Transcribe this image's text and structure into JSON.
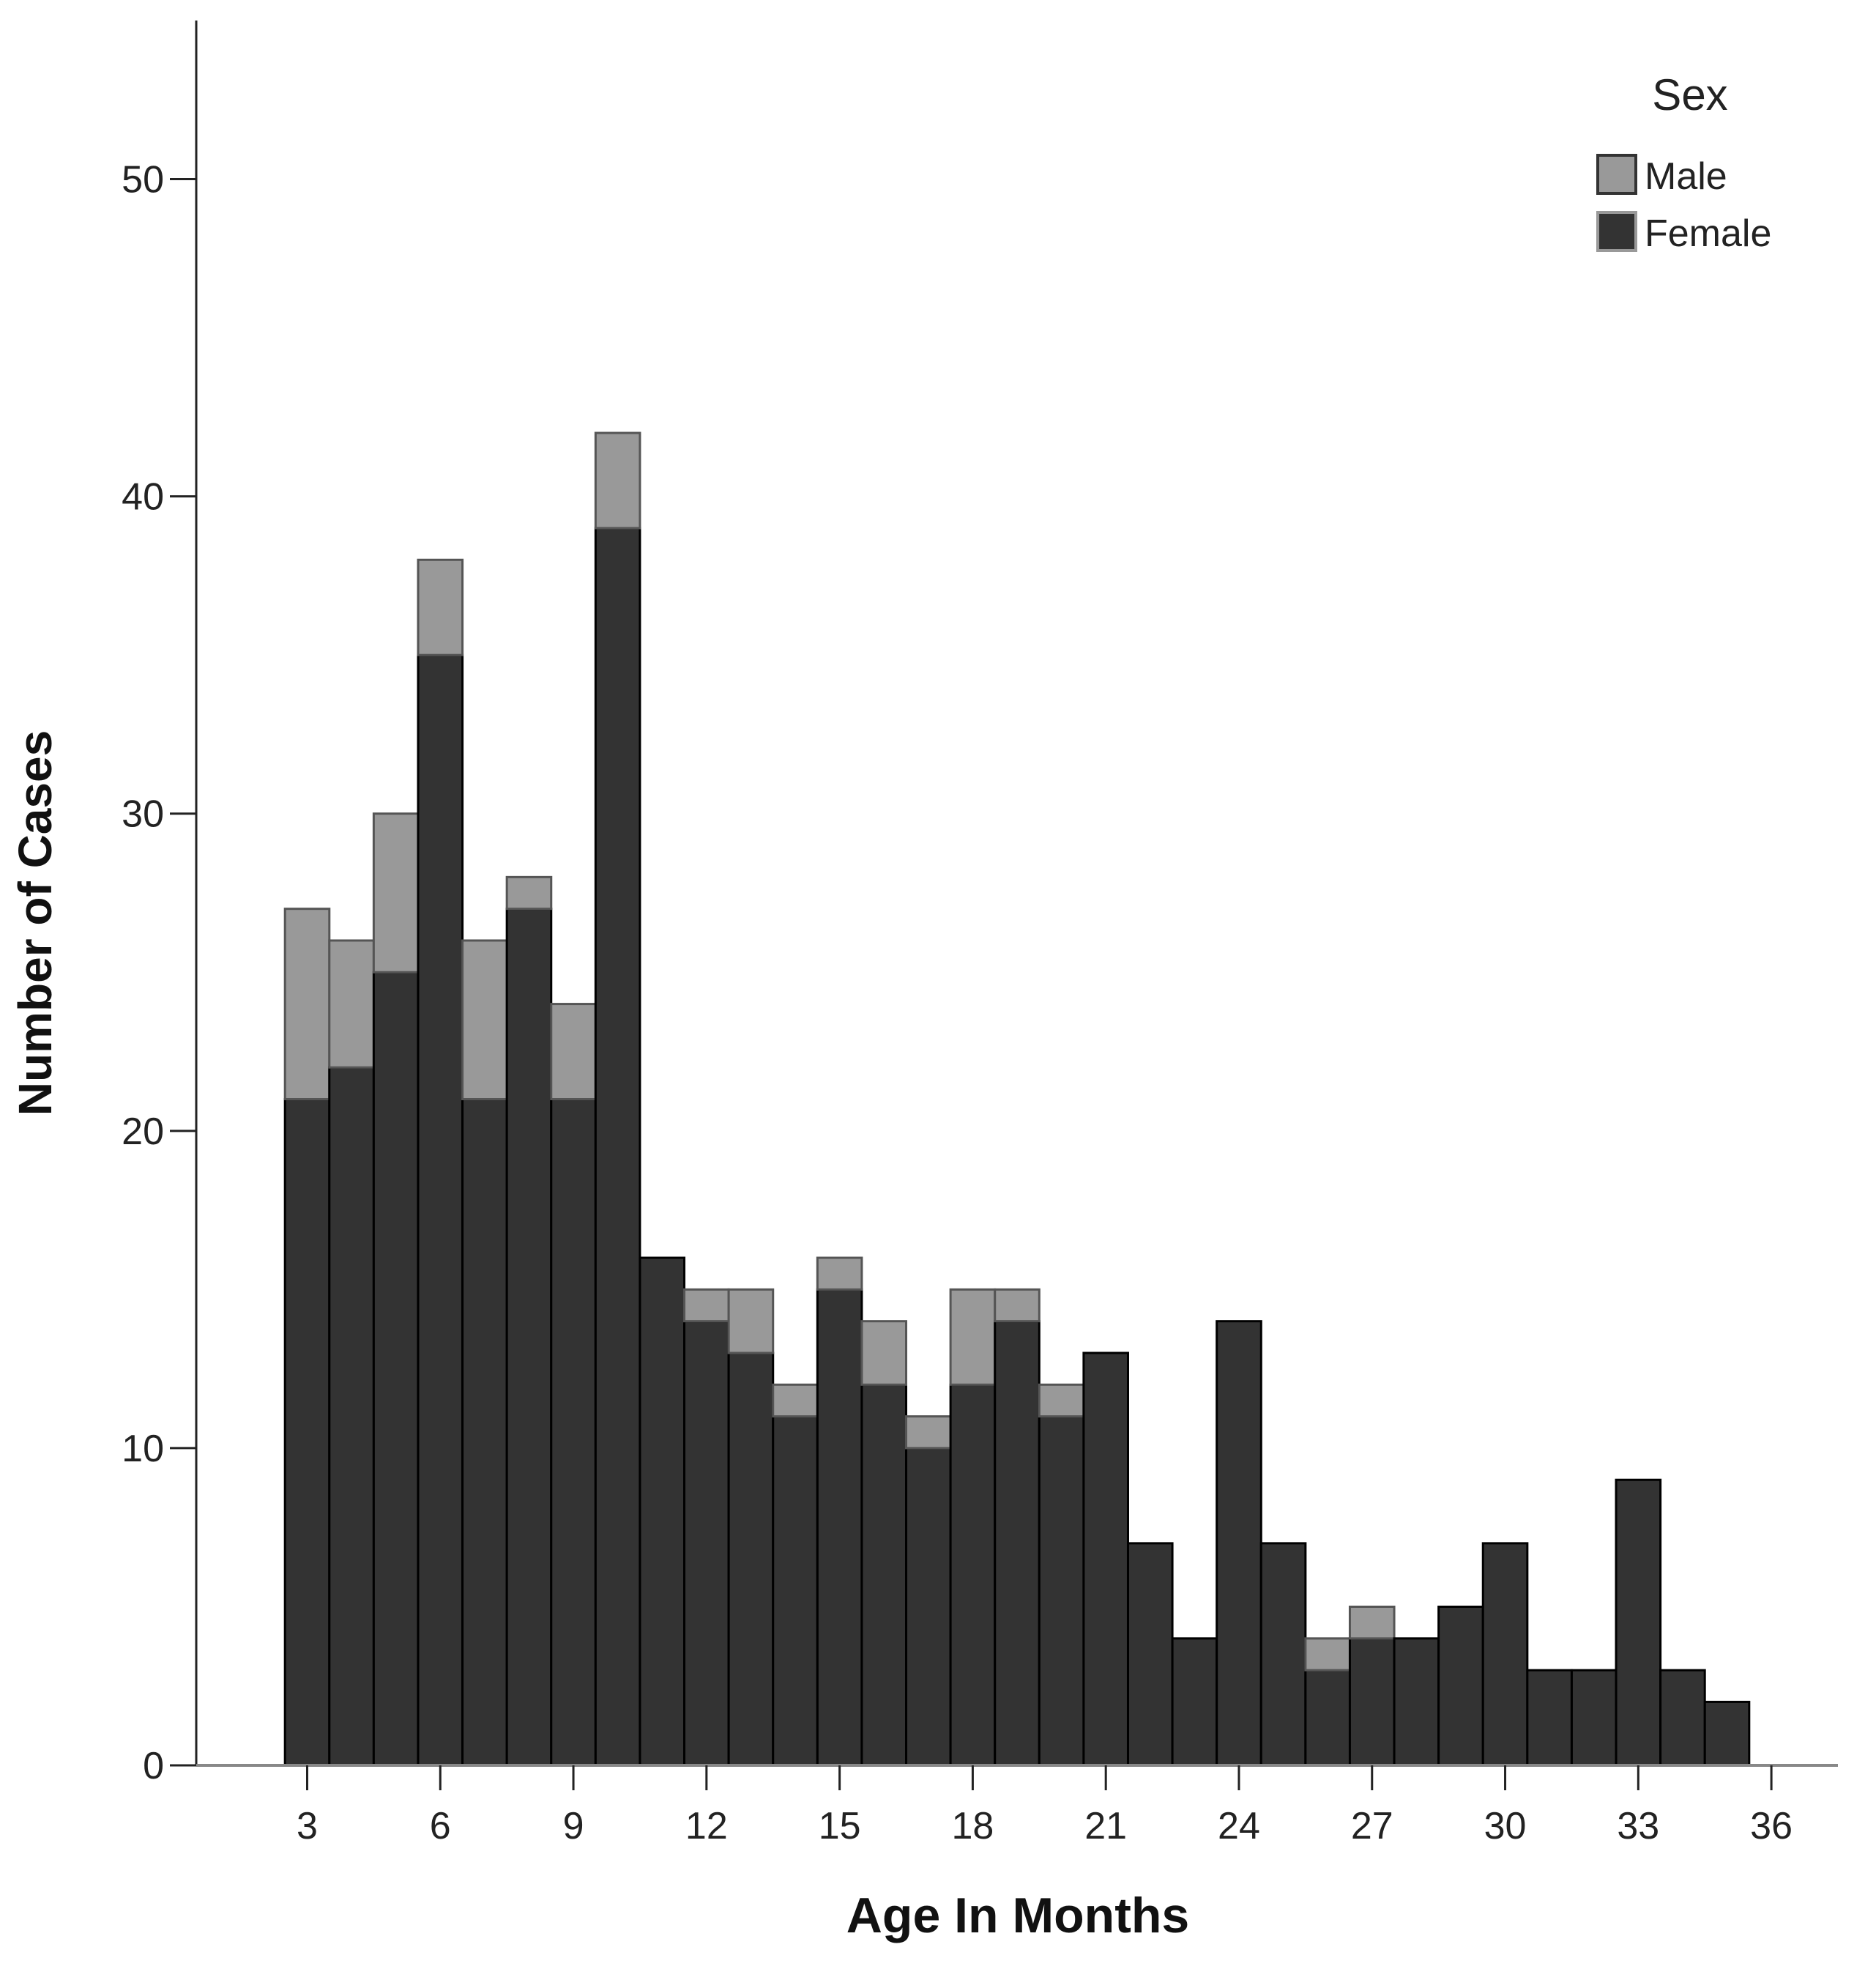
{
  "chart_data": {
    "type": "bar",
    "stacked": true,
    "xlabel": "Age In Months",
    "ylabel": "Number of Cases",
    "xlim": [
      0.5,
      37.5
    ],
    "ylim": [
      0,
      55
    ],
    "xticks": [
      3,
      6,
      9,
      12,
      15,
      18,
      21,
      24,
      27,
      30,
      33,
      36
    ],
    "yticks": [
      0,
      10,
      20,
      30,
      40,
      50
    ],
    "categories": [
      3,
      4,
      5,
      6,
      7,
      8,
      9,
      10,
      11,
      12,
      13,
      14,
      15,
      16,
      17,
      18,
      19,
      20,
      21,
      22,
      23,
      24,
      25,
      26,
      27,
      28,
      29,
      30,
      31,
      32,
      33,
      34,
      35
    ],
    "series": [
      {
        "name": "Female",
        "color": "#333333",
        "values": [
          21,
          22,
          25,
          35,
          21,
          27,
          21,
          39,
          16,
          14,
          13,
          11,
          15,
          12,
          10,
          12,
          14,
          11,
          13,
          7,
          4,
          14,
          7,
          3,
          4,
          4,
          5,
          7,
          3,
          3,
          9,
          3,
          2
        ]
      },
      {
        "name": "Male",
        "color": "#999999",
        "values": [
          6,
          4,
          5,
          3,
          5,
          1,
          3,
          3,
          0,
          1,
          2,
          1,
          1,
          2,
          1,
          3,
          1,
          1,
          0,
          0,
          0,
          0,
          0,
          1,
          1,
          0,
          0,
          0,
          0,
          0,
          0,
          0,
          0
        ]
      }
    ],
    "legend": {
      "title": "Sex",
      "position": "top-right",
      "entries": [
        "Male",
        "Female"
      ]
    }
  }
}
